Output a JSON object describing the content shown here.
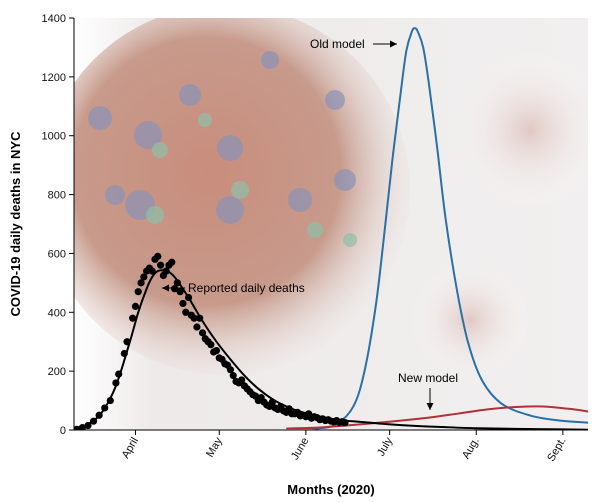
{
  "chart_data": {
    "type": "line",
    "xlabel": "Months (2020)",
    "ylabel": "COVID-19 daily deaths in NYC",
    "ylim": [
      0,
      1400
    ],
    "yticks": [
      0,
      200,
      400,
      600,
      800,
      1000,
      1200,
      1400
    ],
    "xlim": [
      "2020-03-10",
      "2020-09-10"
    ],
    "xticks": [
      {
        "date": "2020-04-01",
        "label": "April"
      },
      {
        "date": "2020-05-01",
        "label": "May"
      },
      {
        "date": "2020-06-01",
        "label": "June"
      },
      {
        "date": "2020-07-01",
        "label": "July"
      },
      {
        "date": "2020-08-01",
        "label": "Aug."
      },
      {
        "date": "2020-09-01",
        "label": "Sept."
      }
    ],
    "grid": false,
    "background": "coronavirus illustration",
    "series": [
      {
        "kind": "line",
        "color": "#2a6fa6",
        "x": [
          "2020-05-25",
          "2020-06-05",
          "2020-06-12",
          "2020-06-18",
          "2020-06-22",
          "2020-06-26",
          "2020-06-29",
          "2020-07-02",
          "2020-07-05",
          "2020-07-07",
          "2020-07-09",
          "2020-07-10",
          "2020-07-11",
          "2020-07-13",
          "2020-07-15",
          "2020-07-18",
          "2020-07-21",
          "2020-07-25",
          "2020-07-29",
          "2020-08-03",
          "2020-08-10",
          "2020-08-20",
          "2020-08-30",
          "2020-09-10"
        ],
        "values": [
          0,
          5,
          20,
          80,
          200,
          420,
          660,
          920,
          1150,
          1290,
          1355,
          1365,
          1355,
          1300,
          1180,
          960,
          720,
          480,
          300,
          170,
          90,
          50,
          33,
          25
        ]
      },
      {
        "kind": "line",
        "color": "#b0313a",
        "x": [
          "2020-05-25",
          "2020-06-05",
          "2020-06-15",
          "2020-06-25",
          "2020-07-05",
          "2020-07-15",
          "2020-07-25",
          "2020-08-05",
          "2020-08-15",
          "2020-08-25",
          "2020-09-05",
          "2020-09-10"
        ],
        "values": [
          5,
          8,
          15,
          23,
          32,
          42,
          55,
          70,
          78,
          80,
          70,
          63
        ]
      },
      {
        "kind": "line",
        "color": "#000000",
        "x": [
          "2020-03-10",
          "2020-03-15",
          "2020-03-20",
          "2020-03-25",
          "2020-03-30",
          "2020-04-02",
          "2020-04-05",
          "2020-04-07",
          "2020-04-09",
          "2020-04-12",
          "2020-04-15",
          "2020-04-20",
          "2020-04-25",
          "2020-04-30",
          "2020-05-05",
          "2020-05-10",
          "2020-05-15",
          "2020-05-20",
          "2020-05-25",
          "2020-05-30",
          "2020-06-05",
          "2020-06-10",
          "2020-06-15",
          "2020-06-20",
          "2020-06-30",
          "2020-07-10",
          "2020-07-20",
          "2020-08-01",
          "2020-08-15",
          "2020-09-01",
          "2020-09-10"
        ],
        "values": [
          5,
          20,
          60,
          150,
          300,
          400,
          480,
          520,
          540,
          540,
          520,
          450,
          370,
          300,
          240,
          185,
          140,
          105,
          80,
          62,
          48,
          38,
          32,
          28,
          20,
          14,
          10,
          6,
          4,
          2,
          1
        ]
      },
      {
        "kind": "scatter",
        "name": "Reported daily deaths",
        "color": "#000000",
        "x": [
          "2020-03-11",
          "2020-03-13",
          "2020-03-15",
          "2020-03-17",
          "2020-03-19",
          "2020-03-21",
          "2020-03-23",
          "2020-03-25",
          "2020-03-26",
          "2020-03-28",
          "2020-03-29",
          "2020-03-31",
          "2020-04-01",
          "2020-04-02",
          "2020-04-03",
          "2020-04-04",
          "2020-04-05",
          "2020-04-06",
          "2020-04-07",
          "2020-04-08",
          "2020-04-09",
          "2020-04-10",
          "2020-04-11",
          "2020-04-12",
          "2020-04-13",
          "2020-04-14",
          "2020-04-15",
          "2020-04-16",
          "2020-04-17",
          "2020-04-18",
          "2020-04-19",
          "2020-04-20",
          "2020-04-21",
          "2020-04-22",
          "2020-04-23",
          "2020-04-24",
          "2020-04-25",
          "2020-04-26",
          "2020-04-27",
          "2020-04-28",
          "2020-04-29",
          "2020-04-30",
          "2020-05-01",
          "2020-05-02",
          "2020-05-03",
          "2020-05-04",
          "2020-05-05",
          "2020-05-06",
          "2020-05-07",
          "2020-05-08",
          "2020-05-09",
          "2020-05-10",
          "2020-05-11",
          "2020-05-12",
          "2020-05-13",
          "2020-05-14",
          "2020-05-15",
          "2020-05-16",
          "2020-05-17",
          "2020-05-18",
          "2020-05-19",
          "2020-05-20",
          "2020-05-21",
          "2020-05-22",
          "2020-05-23",
          "2020-05-24",
          "2020-05-25",
          "2020-05-26",
          "2020-05-27",
          "2020-05-28",
          "2020-05-29",
          "2020-05-30",
          "2020-05-31",
          "2020-06-01",
          "2020-06-02",
          "2020-06-03",
          "2020-06-04",
          "2020-06-05",
          "2020-06-06",
          "2020-06-07",
          "2020-06-08",
          "2020-06-09",
          "2020-06-10",
          "2020-06-11",
          "2020-06-12",
          "2020-06-13",
          "2020-06-14",
          "2020-06-15"
        ],
        "values": [
          2,
          8,
          15,
          30,
          50,
          75,
          100,
          160,
          190,
          260,
          300,
          380,
          420,
          470,
          500,
          520,
          540,
          550,
          540,
          580,
          590,
          560,
          525,
          540,
          560,
          570,
          480,
          500,
          470,
          430,
          400,
          450,
          390,
          380,
          350,
          380,
          330,
          310,
          300,
          290,
          265,
          270,
          245,
          240,
          225,
          220,
          205,
          185,
          165,
          160,
          170,
          150,
          140,
          130,
          120,
          115,
          100,
          110,
          95,
          85,
          80,
          95,
          75,
          70,
          80,
          65,
          60,
          72,
          55,
          55,
          60,
          48,
          50,
          45,
          55,
          40,
          45,
          42,
          35,
          38,
          32,
          35,
          30,
          28,
          32,
          26,
          28,
          25
        ]
      }
    ],
    "annotations": [
      {
        "text": "Old model",
        "x": "2020-07-08",
        "y": 1320
      },
      {
        "text": "New model",
        "x": "2020-07-20",
        "y": 70
      },
      {
        "text": "Reported daily deaths",
        "x": "2020-04-15",
        "y": 480
      }
    ]
  }
}
